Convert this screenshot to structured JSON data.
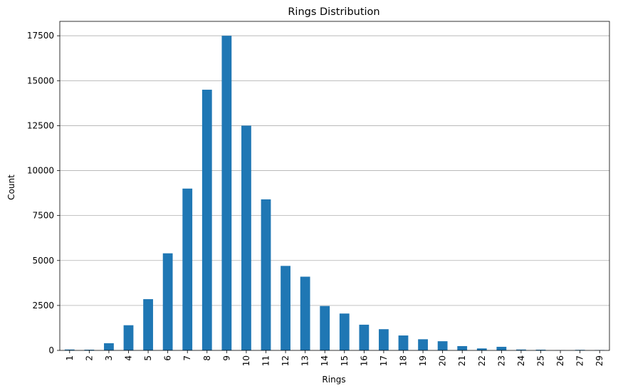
{
  "chart_data": {
    "type": "bar",
    "title": "Rings Distribution",
    "xlabel": "Rings",
    "ylabel": "Count",
    "categories": [
      "1",
      "2",
      "3",
      "4",
      "5",
      "6",
      "7",
      "8",
      "9",
      "10",
      "11",
      "12",
      "13",
      "14",
      "15",
      "16",
      "17",
      "18",
      "19",
      "20",
      "21",
      "22",
      "23",
      "24",
      "25",
      "26",
      "27",
      "29"
    ],
    "values": [
      50,
      40,
      400,
      1400,
      2850,
      5400,
      9000,
      14500,
      17500,
      12500,
      8400,
      4700,
      4100,
      2470,
      2050,
      1430,
      1180,
      830,
      620,
      510,
      240,
      110,
      200,
      50,
      40,
      10,
      30,
      20
    ],
    "ylim": [
      0,
      18300
    ],
    "yticks": [
      0,
      2500,
      5000,
      7500,
      10000,
      12500,
      15000,
      17500
    ],
    "grid": "y",
    "bar_color": "#1f77b4",
    "grid_color": "#b0b0b0"
  }
}
